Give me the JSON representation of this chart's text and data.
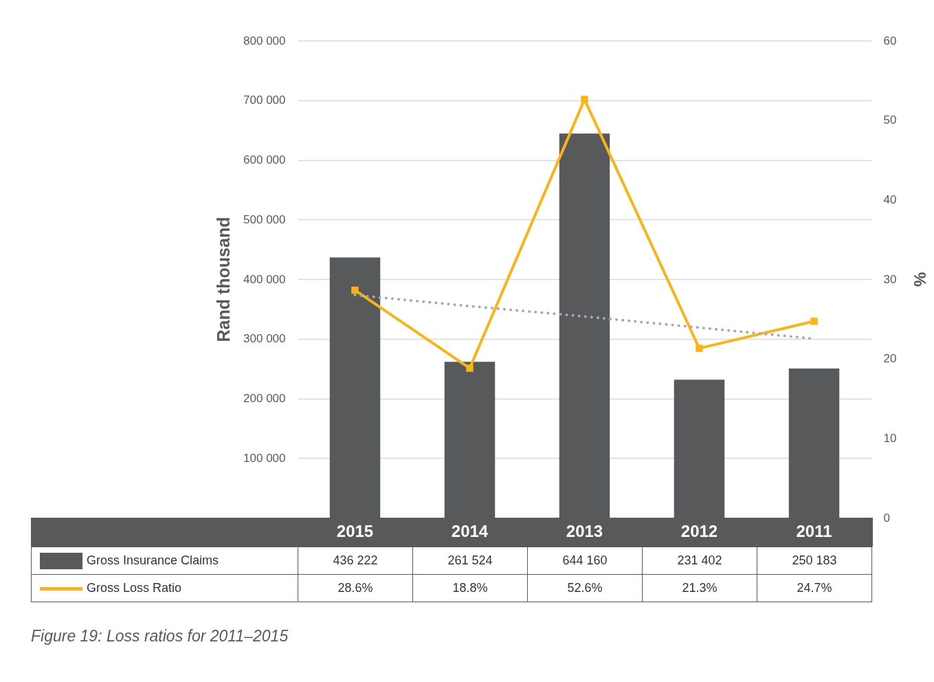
{
  "chart_data": {
    "type": "bar",
    "categories": [
      "2015",
      "2014",
      "2013",
      "2012",
      "2011"
    ],
    "ylabel": "Rand thousand",
    "y2label": "%",
    "ylim": [
      0,
      800000
    ],
    "yticks": [
      {
        "value": 100000,
        "label": "100 000"
      },
      {
        "value": 200000,
        "label": "200 000"
      },
      {
        "value": 300000,
        "label": "300 000"
      },
      {
        "value": 400000,
        "label": "400 000"
      },
      {
        "value": 500000,
        "label": "500 000"
      },
      {
        "value": 600000,
        "label": "600 000"
      },
      {
        "value": 700000,
        "label": "700 000"
      },
      {
        "value": 800000,
        "label": "800 000"
      }
    ],
    "y2lim": [
      0,
      60
    ],
    "y2ticks": [
      0,
      10,
      20,
      30,
      40,
      50,
      60
    ],
    "grid": "y",
    "legend": "bottom",
    "annotations": [
      "Figure 19: Loss ratios for 2011–2015"
    ],
    "series": [
      {
        "name": "Gross Insurance Claims",
        "color": "#58595b",
        "values": [
          436222,
          261524,
          644160,
          231402,
          250183
        ],
        "value_labels": [
          "436 222",
          "261 524",
          "644 160",
          "231 402",
          "250 183"
        ]
      },
      {
        "name": "Gross Loss Ratio",
        "type": "line",
        "axis": "y2",
        "color": "#fbb316",
        "marker": "square",
        "values": [
          28.6,
          18.8,
          52.6,
          21.3,
          24.7
        ],
        "value_labels": [
          "28.6%",
          "18.8%",
          "52.6%",
          "21.3%",
          "24.7%"
        ]
      },
      {
        "type": "line",
        "axis": "y2",
        "color": "#a7a9ac",
        "line_style": "dotted",
        "marker": "none",
        "values": [
          28,
          26.6,
          25.3,
          23.9,
          22.5
        ]
      }
    ]
  }
}
